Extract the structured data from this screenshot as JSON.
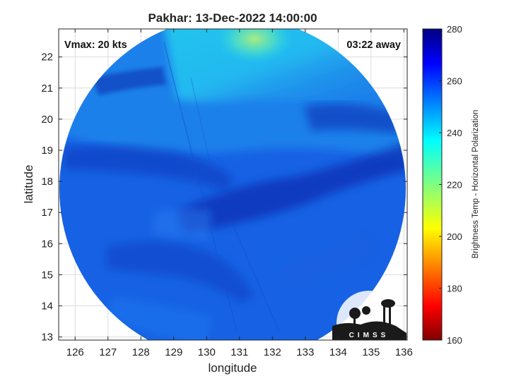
{
  "map": {
    "title": "Pakhar: 13-Dec-2022 14:00:00",
    "xlabel": "longitude",
    "ylabel": "latitude",
    "x_ticks": [
      "126",
      "127",
      "128",
      "129",
      "130",
      "131",
      "132",
      "133",
      "134",
      "135",
      "136"
    ],
    "y_ticks": [
      "13",
      "14",
      "15",
      "16",
      "17",
      "18",
      "19",
      "20",
      "21",
      "22"
    ],
    "xlim": [
      125.5,
      136.1
    ],
    "ylim": [
      12.9,
      22.9
    ],
    "grid": true,
    "vmax_label": "Vmax: 20 kts",
    "time_label": "03:22 away",
    "logo_text": "CIMSS",
    "image_type": "microwave brightness temperature swath (circular footprint)"
  },
  "colorbar": {
    "label": "Brightness Temp - Horizontal Polarization",
    "ticks": [
      "160",
      "180",
      "200",
      "220",
      "240",
      "260",
      "280"
    ],
    "range": [
      160,
      280
    ],
    "colormap": "jet"
  },
  "colors": {
    "swath_main": "#1660e6",
    "swath_dark": "#0a2fb4",
    "swath_light": "#1aa6f0",
    "cyan_band": "#25d0ea",
    "green_patch": "#8be38a"
  }
}
